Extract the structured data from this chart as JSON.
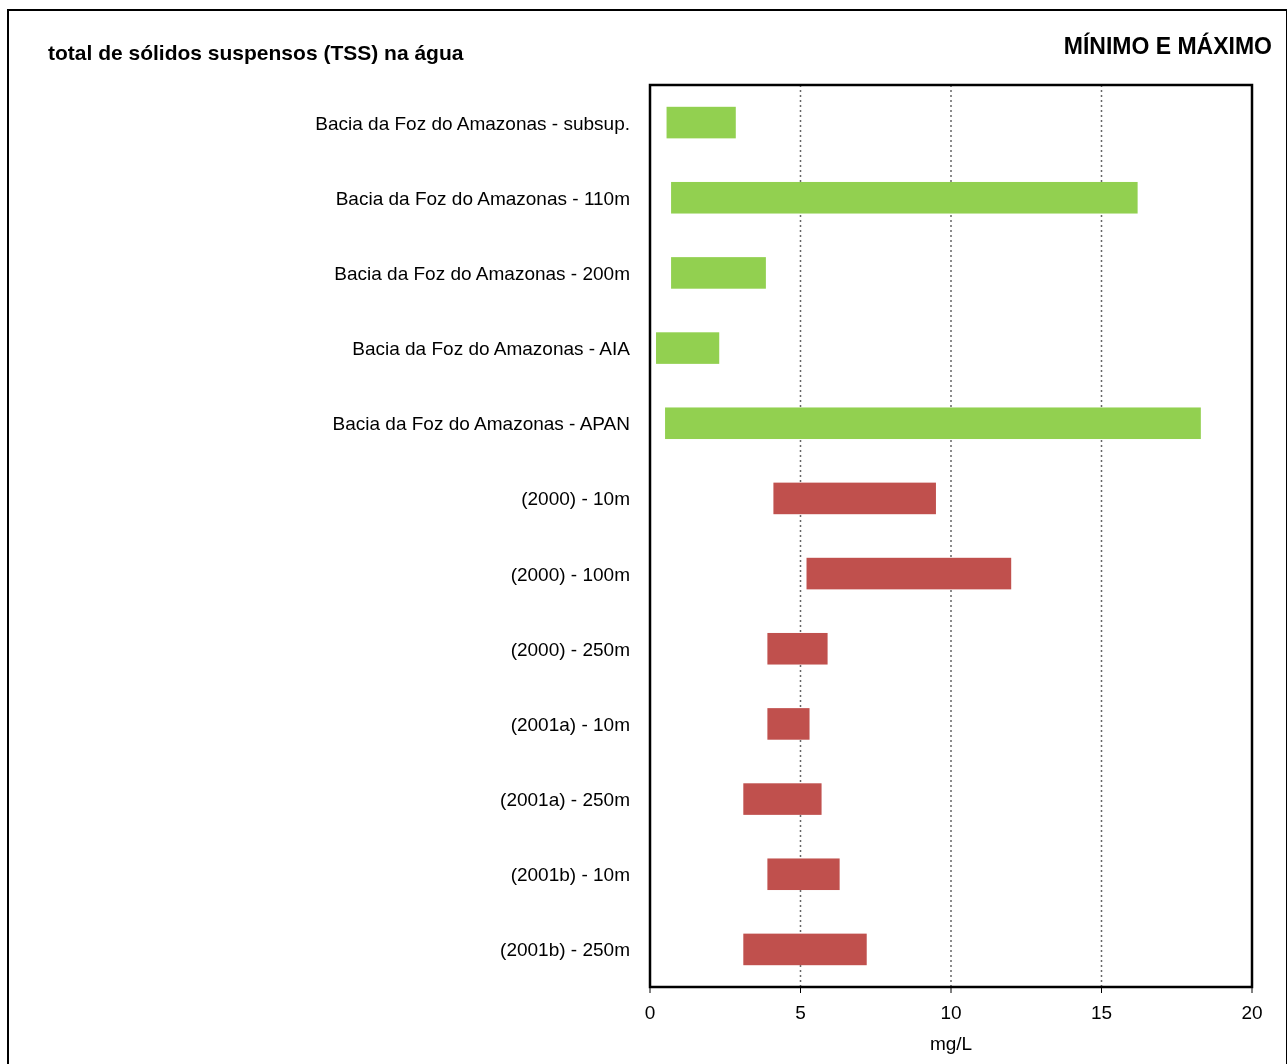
{
  "chart_data": {
    "type": "bar",
    "orientation": "horizontal",
    "title": "total de sólidos suspensos (TSS) na água",
    "subtitle": "MÍNIMO E MÁXIMO",
    "xlabel": "mg/L",
    "categories": [
      "Bacia da Foz do Amazonas - subsup.",
      "Bacia da Foz do Amazonas - 110m",
      "Bacia da Foz do Amazonas - 200m",
      "Bacia da Foz do Amazonas - AIA",
      "Bacia da Foz do Amazonas - APAN",
      "(2000) - 10m",
      "(2000) - 100m",
      "(2000) - 250m",
      "(2001a) - 10m",
      "(2001a) - 250m",
      "(2001b) - 10m",
      "(2001b) - 250m"
    ],
    "base": [
      0.55,
      0.7,
      0.7,
      0.2,
      0.5,
      4.1,
      5.2,
      3.9,
      3.9,
      3.1,
      3.9,
      3.1
    ],
    "values": [
      2.3,
      15.5,
      3.15,
      2.1,
      17.8,
      5.4,
      6.8,
      2.0,
      1.4,
      2.6,
      2.4,
      4.1
    ],
    "colors": [
      "#92d050",
      "#92d050",
      "#92d050",
      "#92d050",
      "#92d050",
      "#c0504d",
      "#c0504d",
      "#c0504d",
      "#c0504d",
      "#c0504d",
      "#c0504d",
      "#c0504d"
    ],
    "xlim": [
      0,
      20
    ],
    "xticks": [
      0,
      5,
      10,
      15,
      20
    ],
    "grid": "x"
  }
}
